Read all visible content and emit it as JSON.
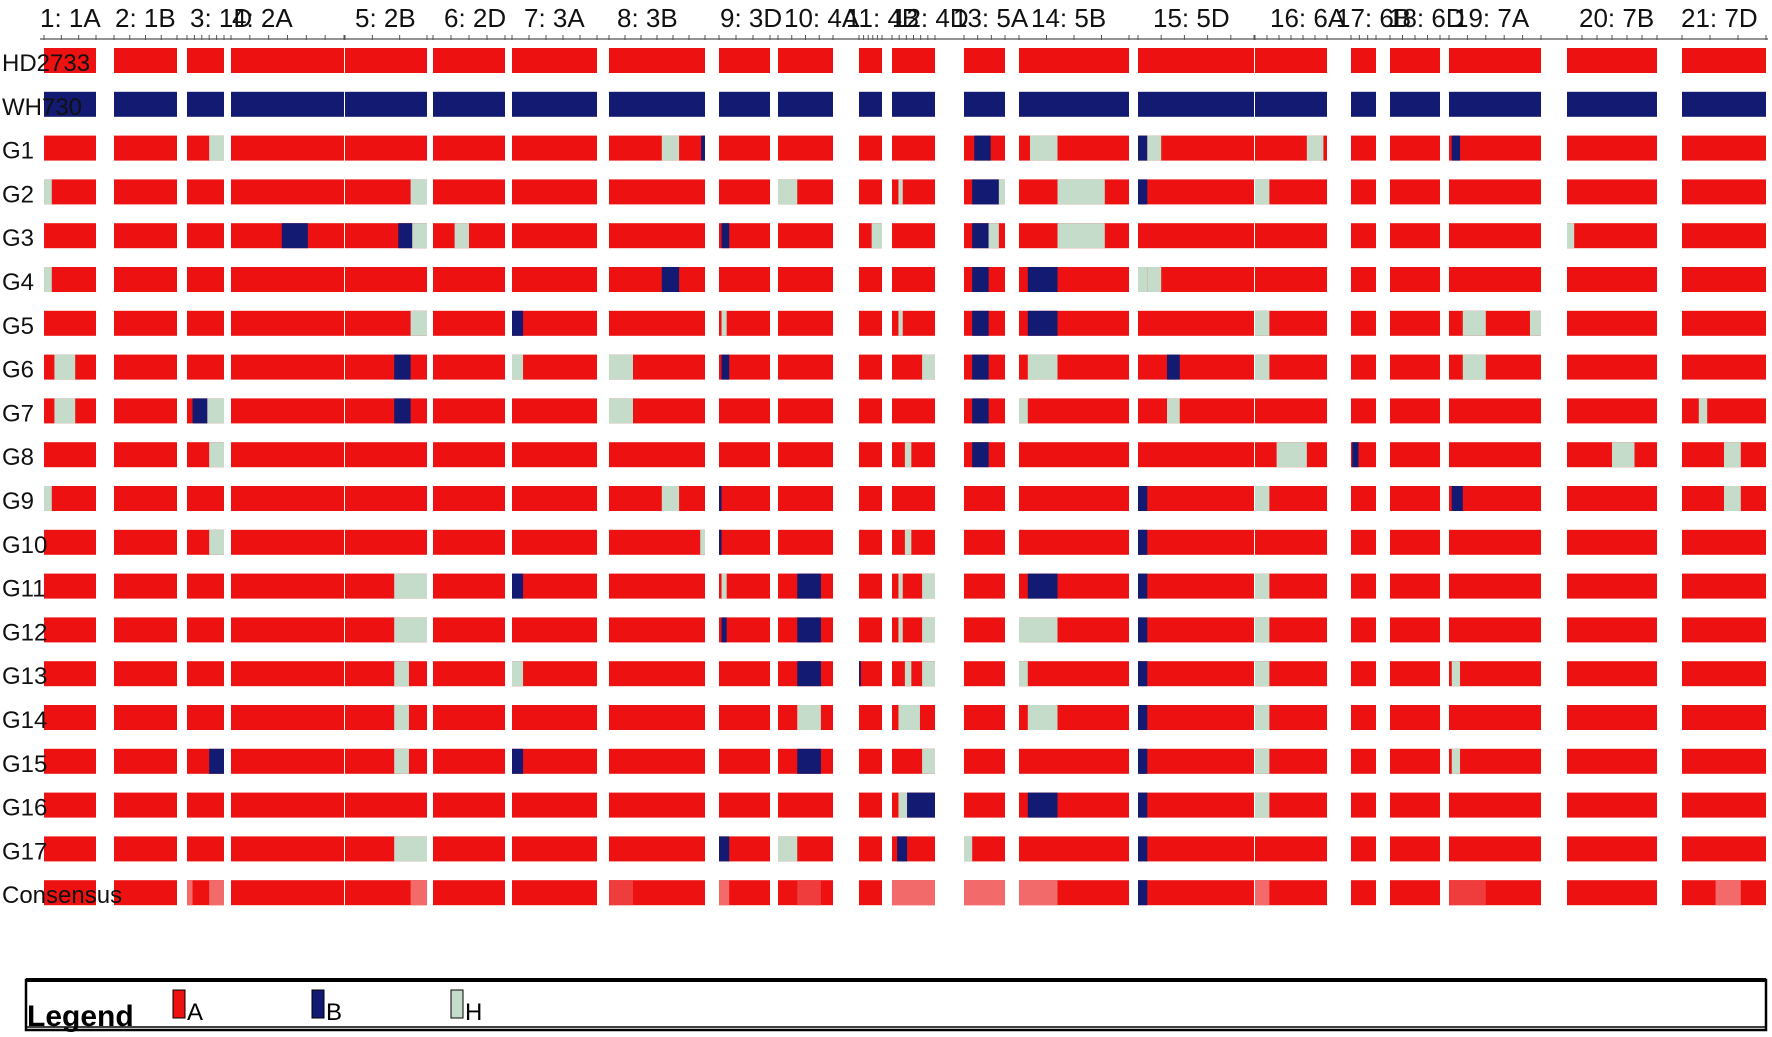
{
  "colors": {
    "A": "#ee1111",
    "B": "#121a72",
    "H": "#c5dccb",
    "consensus_light": "#f26a6a",
    "consensus_mid": "#ef3c3c",
    "background": "#ffffff"
  },
  "legend": {
    "title": "Legend",
    "items": [
      {
        "key": "A",
        "label": "A"
      },
      {
        "key": "B",
        "label": "B"
      },
      {
        "key": "H",
        "label": "H"
      }
    ]
  },
  "chart_data": {
    "type": "heatmap",
    "title": "",
    "xlabel": "",
    "ylabel": "",
    "chromosomes": [
      "1: 1A",
      "2: 1B",
      "3: 1D",
      "4: 2A",
      "5: 2B",
      "6: 2D",
      "7: 3A",
      "8: 3B",
      "9: 3D",
      "10: 4A",
      "11: 4B",
      "12: 4D",
      "13: 5A",
      "14: 5B",
      "15: 5D",
      "16: 6A",
      "17: 6B",
      "18: 6D",
      "19: 7A",
      "20: 7B",
      "21: 7D"
    ],
    "rows": [
      "HD2733",
      "WH730",
      "G1",
      "G2",
      "G3",
      "G4",
      "G5",
      "G6",
      "G7",
      "G8",
      "G9",
      "G10",
      "G11",
      "G12",
      "G13",
      "G14",
      "G15",
      "G16",
      "G17",
      "Consensus"
    ],
    "default_genotype": "A",
    "uniform_rows": {
      "HD2733": "A",
      "WH730": "B"
    },
    "segments": {
      "G1": [
        [
          3,
          0.6,
          1,
          "H"
        ],
        [
          8,
          0.55,
          0.73,
          "H"
        ],
        [
          8,
          0.96,
          1,
          "B"
        ],
        [
          13,
          0.25,
          0.65,
          "B"
        ],
        [
          14,
          0.1,
          0.35,
          "H"
        ],
        [
          15,
          0,
          0.08,
          "B"
        ],
        [
          15,
          0.08,
          0.2,
          "H"
        ],
        [
          16,
          0.72,
          0.95,
          "H"
        ],
        [
          19,
          0.03,
          0.12,
          "B"
        ]
      ],
      "G2": [
        [
          1,
          0,
          0.15,
          "H"
        ],
        [
          5,
          0.8,
          1,
          "H"
        ],
        [
          10,
          0,
          0.35,
          "H"
        ],
        [
          12,
          0.15,
          0.25,
          "H"
        ],
        [
          13,
          0.2,
          0.85,
          "B"
        ],
        [
          13,
          0.85,
          1,
          "H"
        ],
        [
          14,
          0.35,
          0.78,
          "H"
        ],
        [
          15,
          0,
          0.08,
          "B"
        ],
        [
          16,
          0,
          0.2,
          "H"
        ]
      ],
      "G3": [
        [
          4,
          0.45,
          0.68,
          "B"
        ],
        [
          5,
          0.65,
          0.82,
          "B"
        ],
        [
          5,
          0.82,
          1,
          "H"
        ],
        [
          6,
          0.3,
          0.5,
          "H"
        ],
        [
          9,
          0.05,
          0.2,
          "B"
        ],
        [
          11,
          0.55,
          1,
          "H"
        ],
        [
          13,
          0.2,
          0.6,
          "B"
        ],
        [
          13,
          0.6,
          0.85,
          "H"
        ],
        [
          14,
          0.35,
          0.78,
          "H"
        ],
        [
          20,
          0,
          0.08,
          "H"
        ]
      ],
      "G4": [
        [
          1,
          0,
          0.15,
          "H"
        ],
        [
          8,
          0.55,
          0.73,
          "B"
        ],
        [
          13,
          0.2,
          0.6,
          "B"
        ],
        [
          14,
          0.08,
          0.35,
          "B"
        ],
        [
          15,
          0,
          0.08,
          "H"
        ],
        [
          15,
          0.08,
          0.2,
          "H"
        ]
      ],
      "G5": [
        [
          5,
          0.8,
          1,
          "H"
        ],
        [
          7,
          0,
          0.13,
          "B"
        ],
        [
          9,
          0.05,
          0.15,
          "H"
        ],
        [
          12,
          0.15,
          0.25,
          "H"
        ],
        [
          13,
          0.2,
          0.6,
          "B"
        ],
        [
          14,
          0.08,
          0.35,
          "B"
        ],
        [
          16,
          0,
          0.2,
          "H"
        ],
        [
          19,
          0.15,
          0.4,
          "H"
        ],
        [
          19,
          0.88,
          1,
          "H"
        ]
      ],
      "G6": [
        [
          1,
          0.2,
          0.6,
          "H"
        ],
        [
          5,
          0.6,
          0.8,
          "B"
        ],
        [
          7,
          0,
          0.13,
          "H"
        ],
        [
          8,
          0,
          0.25,
          "H"
        ],
        [
          9,
          0.05,
          0.2,
          "B"
        ],
        [
          12,
          0.7,
          1,
          "H"
        ],
        [
          13,
          0.2,
          0.6,
          "B"
        ],
        [
          14,
          0.08,
          0.35,
          "H"
        ],
        [
          15,
          0.25,
          0.36,
          "B"
        ],
        [
          16,
          0,
          0.2,
          "H"
        ],
        [
          19,
          0.15,
          0.4,
          "H"
        ]
      ],
      "G7": [
        [
          1,
          0.2,
          0.6,
          "H"
        ],
        [
          3,
          0.15,
          0.55,
          "B"
        ],
        [
          3,
          0.55,
          1,
          "H"
        ],
        [
          5,
          0.6,
          0.8,
          "B"
        ],
        [
          8,
          0,
          0.25,
          "H"
        ],
        [
          13,
          0.2,
          0.6,
          "B"
        ],
        [
          14,
          0,
          0.08,
          "H"
        ],
        [
          15,
          0.25,
          0.36,
          "H"
        ],
        [
          21,
          0.2,
          0.3,
          "H"
        ]
      ],
      "G8": [
        [
          3,
          0.6,
          1,
          "H"
        ],
        [
          12,
          0.3,
          0.45,
          "H"
        ],
        [
          13,
          0.2,
          0.6,
          "B"
        ],
        [
          16,
          0.3,
          0.72,
          "H"
        ],
        [
          17,
          0.05,
          0.3,
          "B"
        ],
        [
          20,
          0.5,
          0.75,
          "H"
        ],
        [
          21,
          0.5,
          0.7,
          "H"
        ]
      ],
      "G9": [
        [
          1,
          0,
          0.15,
          "H"
        ],
        [
          8,
          0.55,
          0.73,
          "H"
        ],
        [
          9,
          0,
          0.05,
          "B"
        ],
        [
          15,
          0,
          0.08,
          "B"
        ],
        [
          16,
          0,
          0.2,
          "H"
        ],
        [
          19,
          0.03,
          0.15,
          "B"
        ],
        [
          21,
          0.5,
          0.7,
          "H"
        ]
      ],
      "G10": [
        [
          3,
          0.6,
          1,
          "H"
        ],
        [
          8,
          0.95,
          1,
          "H"
        ],
        [
          9,
          0,
          0.05,
          "B"
        ],
        [
          12,
          0.3,
          0.45,
          "H"
        ],
        [
          15,
          0,
          0.08,
          "B"
        ]
      ],
      "G11": [
        [
          5,
          0.6,
          1,
          "H"
        ],
        [
          7,
          0,
          0.13,
          "B"
        ],
        [
          9,
          0.05,
          0.15,
          "H"
        ],
        [
          10,
          0.35,
          0.78,
          "B"
        ],
        [
          12,
          0.15,
          0.25,
          "H"
        ],
        [
          12,
          0.7,
          1,
          "H"
        ],
        [
          14,
          0.08,
          0.35,
          "B"
        ],
        [
          15,
          0,
          0.08,
          "B"
        ],
        [
          16,
          0,
          0.2,
          "H"
        ]
      ],
      "G12": [
        [
          5,
          0.6,
          1,
          "H"
        ],
        [
          9,
          0.05,
          0.15,
          "B"
        ],
        [
          10,
          0.35,
          0.78,
          "B"
        ],
        [
          12,
          0.15,
          0.25,
          "H"
        ],
        [
          12,
          0.7,
          1,
          "H"
        ],
        [
          14,
          0,
          0.35,
          "H"
        ],
        [
          15,
          0,
          0.08,
          "B"
        ],
        [
          16,
          0,
          0.2,
          "H"
        ]
      ],
      "G13": [
        [
          5,
          0.6,
          0.78,
          "H"
        ],
        [
          7,
          0,
          0.13,
          "H"
        ],
        [
          10,
          0.35,
          0.78,
          "B"
        ],
        [
          11,
          0,
          0.08,
          "B"
        ],
        [
          12,
          0.3,
          0.45,
          "H"
        ],
        [
          12,
          0.7,
          1,
          "H"
        ],
        [
          14,
          0,
          0.08,
          "H"
        ],
        [
          15,
          0,
          0.08,
          "B"
        ],
        [
          16,
          0,
          0.2,
          "H"
        ],
        [
          19,
          0.03,
          0.12,
          "H"
        ]
      ],
      "G14": [
        [
          5,
          0.6,
          0.78,
          "H"
        ],
        [
          10,
          0.35,
          0.78,
          "H"
        ],
        [
          12,
          0.15,
          0.65,
          "H"
        ],
        [
          14,
          0.08,
          0.35,
          "H"
        ],
        [
          15,
          0,
          0.08,
          "B"
        ],
        [
          16,
          0,
          0.2,
          "H"
        ]
      ],
      "G15": [
        [
          3,
          0.6,
          1,
          "B"
        ],
        [
          5,
          0.6,
          0.78,
          "H"
        ],
        [
          7,
          0,
          0.13,
          "B"
        ],
        [
          10,
          0.35,
          0.78,
          "B"
        ],
        [
          12,
          0.7,
          1,
          "H"
        ],
        [
          15,
          0,
          0.08,
          "B"
        ],
        [
          16,
          0,
          0.2,
          "H"
        ],
        [
          19,
          0.03,
          0.12,
          "H"
        ]
      ],
      "G16": [
        [
          12,
          0.35,
          1,
          "B"
        ],
        [
          12,
          0.15,
          0.35,
          "H"
        ],
        [
          14,
          0.08,
          0.35,
          "B"
        ],
        [
          15,
          0,
          0.08,
          "B"
        ],
        [
          16,
          0,
          0.2,
          "H"
        ]
      ],
      "G17": [
        [
          5,
          0.6,
          1,
          "H"
        ],
        [
          9,
          0,
          0.2,
          "B"
        ],
        [
          10,
          0,
          0.35,
          "H"
        ],
        [
          12,
          0.12,
          0.35,
          "B"
        ],
        [
          13,
          0,
          0.2,
          "H"
        ],
        [
          15,
          0,
          0.08,
          "B"
        ]
      ],
      "Consensus": [
        [
          3,
          0,
          0.15,
          "consensus_light"
        ],
        [
          3,
          0.6,
          1,
          "consensus_light"
        ],
        [
          5,
          0.8,
          1,
          "consensus_light"
        ],
        [
          8,
          0,
          0.25,
          "consensus_mid"
        ],
        [
          9,
          0,
          0.2,
          "consensus_light"
        ],
        [
          10,
          0.35,
          0.78,
          "consensus_mid"
        ],
        [
          12,
          0,
          1,
          "consensus_light"
        ],
        [
          13,
          0,
          1,
          "consensus_light"
        ],
        [
          14,
          0,
          0.35,
          "consensus_light"
        ],
        [
          15,
          0,
          0.08,
          "B"
        ],
        [
          16,
          0,
          0.2,
          "consensus_light"
        ],
        [
          19,
          0,
          0.4,
          "consensus_mid"
        ],
        [
          21,
          0.4,
          0.7,
          "consensus_light"
        ]
      ]
    },
    "grid": false,
    "legend_position": "bottom"
  }
}
